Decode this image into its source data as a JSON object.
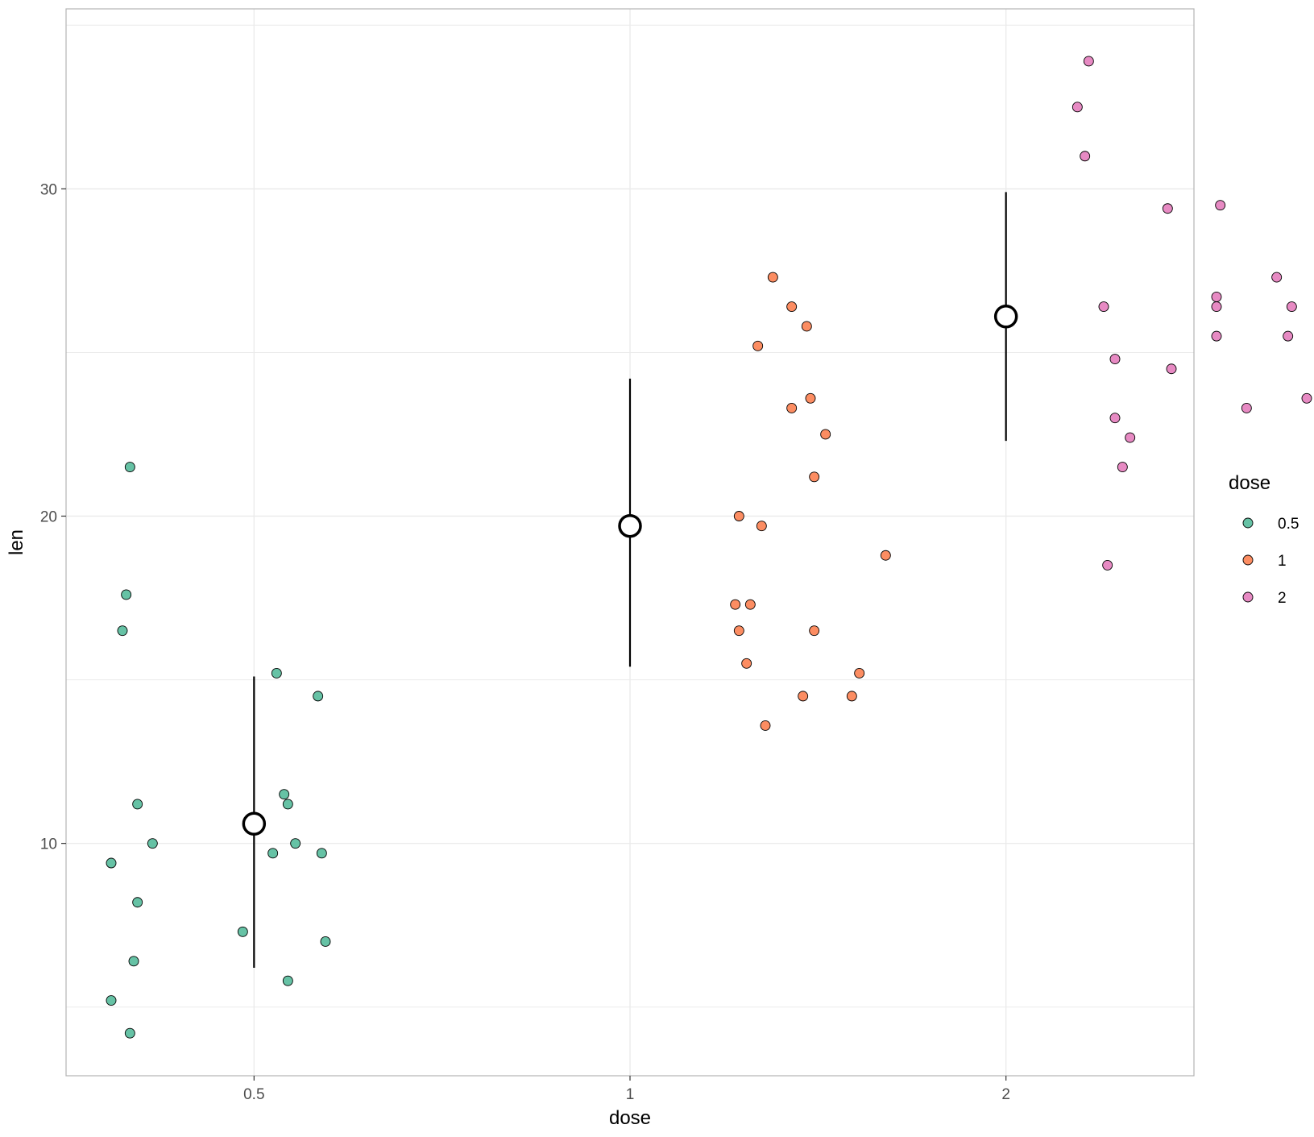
{
  "chart_data": {
    "type": "scatter",
    "title": "",
    "xlabel": "dose",
    "ylabel": "len",
    "x_type": "categorical",
    "categories": [
      "0.5",
      "1",
      "2"
    ],
    "ylim": [
      2.9,
      35.5
    ],
    "yticks": [
      10,
      20,
      30
    ],
    "grid": true,
    "legend": {
      "title": "dose",
      "position": "right",
      "entries": [
        "0.5",
        "1",
        "2"
      ]
    },
    "colors": {
      "0.5": "#66C2A5",
      "1": "#FC8D62",
      "2": "#E78AC3"
    },
    "series": [
      {
        "name": "0.5",
        "color": "#66C2A5",
        "points": [
          {
            "x": 0.17,
            "y": 21.5
          },
          {
            "x": 0.16,
            "y": 17.6
          },
          {
            "x": 0.15,
            "y": 16.5
          },
          {
            "x": 0.56,
            "y": 15.2
          },
          {
            "x": 0.67,
            "y": 14.5
          },
          {
            "x": 0.58,
            "y": 11.5
          },
          {
            "x": 0.59,
            "y": 11.2
          },
          {
            "x": 0.19,
            "y": 11.2
          },
          {
            "x": 0.23,
            "y": 10.0
          },
          {
            "x": 0.61,
            "y": 10.0
          },
          {
            "x": 0.55,
            "y": 9.7
          },
          {
            "x": 0.68,
            "y": 9.7
          },
          {
            "x": 0.12,
            "y": 9.4
          },
          {
            "x": 0.19,
            "y": 8.2
          },
          {
            "x": 0.47,
            "y": 7.3
          },
          {
            "x": 0.69,
            "y": 7.0
          },
          {
            "x": 0.18,
            "y": 6.4
          },
          {
            "x": 0.59,
            "y": 5.8
          },
          {
            "x": 0.12,
            "y": 5.2
          },
          {
            "x": 0.17,
            "y": 4.2
          }
        ]
      },
      {
        "name": "1",
        "color": "#FC8D62",
        "points": [
          {
            "x": 1.88,
            "y": 27.3
          },
          {
            "x": 1.93,
            "y": 26.4
          },
          {
            "x": 1.97,
            "y": 25.8
          },
          {
            "x": 1.84,
            "y": 25.2
          },
          {
            "x": 1.98,
            "y": 23.6
          },
          {
            "x": 1.93,
            "y": 23.3
          },
          {
            "x": 2.02,
            "y": 22.5
          },
          {
            "x": 1.99,
            "y": 21.2
          },
          {
            "x": 1.79,
            "y": 20.0
          },
          {
            "x": 1.85,
            "y": 19.7
          },
          {
            "x": 2.18,
            "y": 18.8
          },
          {
            "x": 1.78,
            "y": 17.3
          },
          {
            "x": 1.82,
            "y": 17.3
          },
          {
            "x": 1.79,
            "y": 16.5
          },
          {
            "x": 1.99,
            "y": 16.5
          },
          {
            "x": 1.81,
            "y": 15.5
          },
          {
            "x": 2.11,
            "y": 15.2
          },
          {
            "x": 2.09,
            "y": 14.5
          },
          {
            "x": 1.96,
            "y": 14.5
          },
          {
            "x": 1.86,
            "y": 13.6
          }
        ]
      },
      {
        "name": "2",
        "color": "#E78AC3",
        "points": [
          {
            "x": 2.72,
            "y": 33.9
          },
          {
            "x": 2.69,
            "y": 32.5
          },
          {
            "x": 2.71,
            "y": 31.0
          },
          {
            "x": 2.93,
            "y": 29.4
          },
          {
            "x": 3.07,
            "y": 29.5
          },
          {
            "x": 3.22,
            "y": 27.3
          },
          {
            "x": 3.06,
            "y": 26.7
          },
          {
            "x": 2.76,
            "y": 26.4
          },
          {
            "x": 3.06,
            "y": 26.4
          },
          {
            "x": 3.26,
            "y": 26.4
          },
          {
            "x": 3.06,
            "y": 25.5
          },
          {
            "x": 3.25,
            "y": 25.5
          },
          {
            "x": 2.79,
            "y": 24.8
          },
          {
            "x": 2.94,
            "y": 24.5
          },
          {
            "x": 3.14,
            "y": 23.3
          },
          {
            "x": 3.3,
            "y": 23.6
          },
          {
            "x": 2.79,
            "y": 23.0
          },
          {
            "x": 2.83,
            "y": 22.4
          },
          {
            "x": 2.81,
            "y": 21.5
          },
          {
            "x": 2.77,
            "y": 18.5
          }
        ]
      }
    ],
    "summary": [
      {
        "category": "0.5",
        "x": 0.5,
        "mean": 10.6,
        "lower": 6.2,
        "upper": 15.1
      },
      {
        "category": "1",
        "x": 1.5,
        "mean": 19.7,
        "lower": 15.4,
        "upper": 24.2
      },
      {
        "category": "2",
        "x": 2.5,
        "mean": 26.1,
        "lower": 22.3,
        "upper": 29.9
      }
    ]
  }
}
